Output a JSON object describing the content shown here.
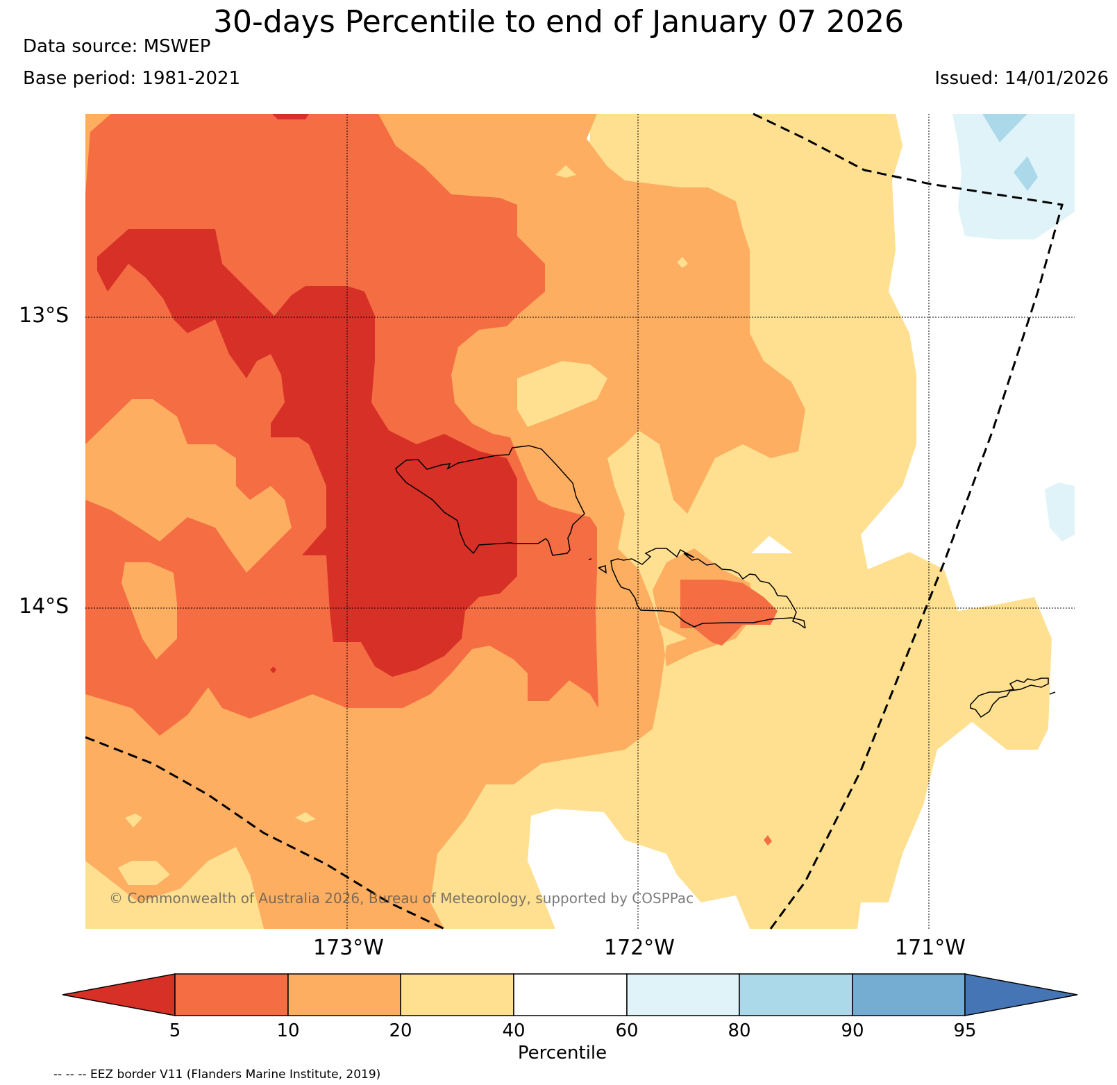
{
  "title": "30-days Percentile to end of January 07 2026",
  "data_source": "Data source: MSWEP",
  "base_period": "Base period: 1981-2021",
  "issued": "Issued: 14/01/2026",
  "map": {
    "lat_labels": [
      "13°S",
      "14°S"
    ],
    "lon_labels": [
      "173°W",
      "172°W",
      "171°W"
    ],
    "copyright": "© Commonwealth of Australia 2026, Bureau of Meteorology, supported by COSPPac"
  },
  "legend": {
    "tick_labels": [
      "5",
      "10",
      "20",
      "40",
      "60",
      "80",
      "90",
      "95"
    ],
    "label": "Percentile",
    "bins": [
      {
        "range": "<5",
        "color": "#d73027"
      },
      {
        "range": "5-10",
        "color": "#f46d43"
      },
      {
        "range": "10-20",
        "color": "#fdae61"
      },
      {
        "range": "20-40",
        "color": "#fee090"
      },
      {
        "range": "40-60",
        "color": "#ffffff"
      },
      {
        "range": "60-80",
        "color": "#e0f3f8"
      },
      {
        "range": "80-90",
        "color": "#abd9e9"
      },
      {
        "range": "90-95",
        "color": "#74add1"
      },
      {
        "range": ">95",
        "color": "#4575b4"
      }
    ]
  },
  "eez_note": "-- -- -- EEZ border V11 (Flanders Marine Institute, 2019)"
}
